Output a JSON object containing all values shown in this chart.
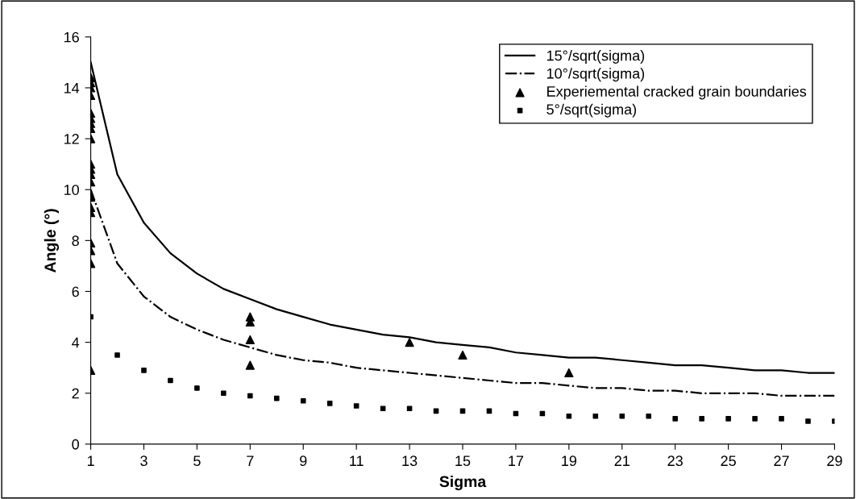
{
  "chart_data": {
    "type": "line",
    "xlabel": "Sigma",
    "ylabel": "Angle (°)",
    "xlim": [
      1,
      29
    ],
    "xticks": [
      1,
      3,
      5,
      7,
      9,
      11,
      13,
      15,
      17,
      19,
      21,
      23,
      25,
      27,
      29
    ],
    "ylim": [
      0,
      16
    ],
    "yticks": [
      0,
      2,
      4,
      6,
      8,
      10,
      12,
      14,
      16
    ],
    "grid": false,
    "legend": "top right",
    "series": [
      {
        "name": "15°/sqrt(sigma)",
        "color": "#000000",
        "line_style": "solid",
        "marker": "none",
        "x": [
          1,
          2,
          3,
          4,
          5,
          6,
          7,
          8,
          9,
          10,
          11,
          12,
          13,
          14,
          15,
          16,
          17,
          18,
          19,
          20,
          21,
          22,
          23,
          24,
          25,
          26,
          27,
          28,
          29
        ],
        "values": [
          15,
          10.6,
          8.7,
          7.5,
          6.7,
          6.1,
          5.7,
          5.3,
          5.0,
          4.7,
          4.5,
          4.3,
          4.2,
          4.0,
          3.9,
          3.8,
          3.6,
          3.5,
          3.4,
          3.4,
          3.3,
          3.2,
          3.1,
          3.1,
          3.0,
          2.9,
          2.9,
          2.8,
          2.8
        ]
      },
      {
        "name": "10°/sqrt(sigma)",
        "color": "#000000",
        "line_style": "dashdot",
        "marker": "none",
        "x": [
          1,
          2,
          3,
          4,
          5,
          6,
          7,
          8,
          9,
          10,
          11,
          12,
          13,
          14,
          15,
          16,
          17,
          18,
          19,
          20,
          21,
          22,
          23,
          24,
          25,
          26,
          27,
          28,
          29
        ],
        "values": [
          10,
          7.1,
          5.8,
          5.0,
          4.5,
          4.1,
          3.8,
          3.5,
          3.3,
          3.2,
          3.0,
          2.9,
          2.8,
          2.7,
          2.6,
          2.5,
          2.4,
          2.4,
          2.3,
          2.2,
          2.2,
          2.1,
          2.1,
          2.0,
          2.0,
          2.0,
          1.9,
          1.9,
          1.9
        ]
      },
      {
        "name": "Experiemental cracked grain boundaries",
        "type": "scatter",
        "color": "#000000",
        "marker": "triangle",
        "x": [
          1,
          1,
          1,
          1,
          1,
          1,
          1,
          1,
          1,
          1,
          1,
          1,
          1,
          1,
          1,
          1,
          1,
          1,
          1,
          1,
          7,
          7,
          7,
          7,
          13,
          15,
          19
        ],
        "values": [
          14.4,
          14.2,
          14.0,
          13.7,
          13.0,
          12.8,
          12.6,
          12.4,
          12.0,
          11.0,
          10.8,
          10.6,
          10.3,
          9.7,
          9.3,
          9.1,
          7.9,
          7.6,
          7.1,
          2.9,
          5.0,
          4.8,
          4.1,
          3.1,
          4.0,
          3.5,
          2.8
        ]
      },
      {
        "name": "5°/sqrt(sigma)",
        "type": "scatter",
        "color": "#000000",
        "marker": "square",
        "x": [
          1,
          2,
          3,
          4,
          5,
          6,
          7,
          8,
          9,
          10,
          11,
          12,
          13,
          14,
          15,
          16,
          17,
          18,
          19,
          20,
          21,
          22,
          23,
          24,
          25,
          26,
          27,
          28,
          29
        ],
        "values": [
          5,
          3.5,
          2.9,
          2.5,
          2.2,
          2.0,
          1.9,
          1.8,
          1.7,
          1.6,
          1.5,
          1.4,
          1.4,
          1.3,
          1.3,
          1.3,
          1.2,
          1.2,
          1.1,
          1.1,
          1.1,
          1.1,
          1.0,
          1.0,
          1.0,
          1.0,
          1.0,
          0.9,
          0.9
        ]
      }
    ]
  }
}
